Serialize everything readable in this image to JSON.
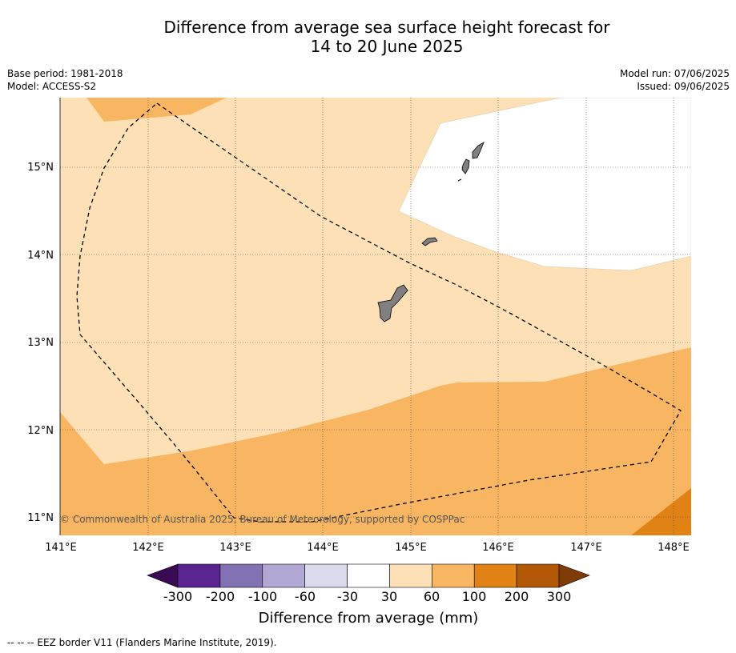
{
  "title": {
    "line1": "Difference from average sea surface height forecast for",
    "line2": "14 to 20 June 2025"
  },
  "meta": {
    "base_period": "Base period: 1981-2018",
    "model": "Model: ACCESS-S2",
    "model_run": "Model run: 07/06/2025",
    "issued": "Issued: 09/06/2025"
  },
  "map": {
    "lat_labels": [
      "15°N",
      "14°N",
      "13°N",
      "12°N",
      "11°N"
    ],
    "lon_labels": [
      "141°E",
      "142°E",
      "143°E",
      "144°E",
      "145°E",
      "146°E",
      "147°E",
      "148°E"
    ],
    "copyright": "© Commonwealth of Australia 2025, Bureau of Meteorology, supported by COSPPac"
  },
  "colorbar": {
    "title": "Difference from average (mm)",
    "ticks": [
      "-300",
      "-200",
      "-100",
      "-60",
      "-30",
      "30",
      "60",
      "100",
      "200",
      "300"
    ],
    "colors": [
      "#3b0a55",
      "#5a2590",
      "#8272b4",
      "#b0a8d3",
      "#dadaec",
      "#ffffff",
      "#fde0b6",
      "#f9b662",
      "#e08214",
      "#b35806",
      "#7f3b08"
    ]
  },
  "footer": "-- -- -- EEZ border V11 (Flanders Marine Institute, 2019)."
}
